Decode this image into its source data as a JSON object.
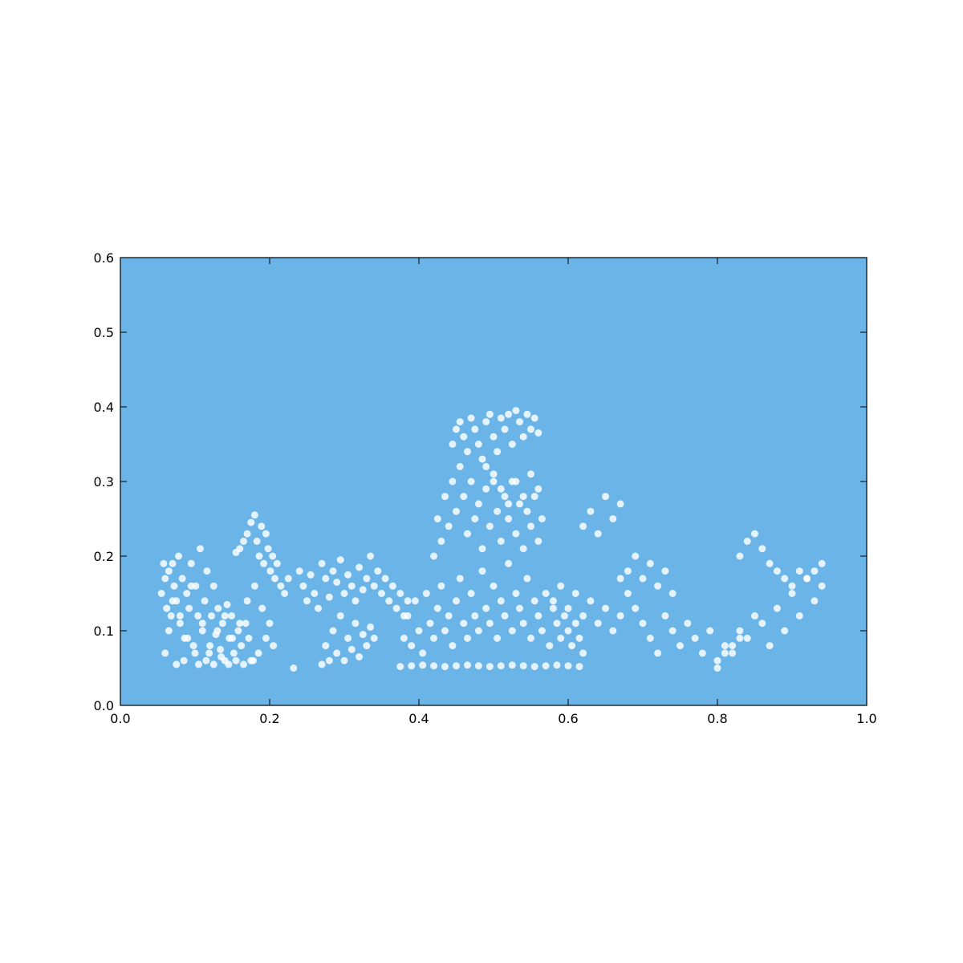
{
  "chart_data": {
    "type": "scatter",
    "title": "",
    "xlabel": "",
    "ylabel": "",
    "xlim": [
      0.0,
      1.0
    ],
    "ylim": [
      0.0,
      0.6
    ],
    "grid": false,
    "background_color": "#6ab4e8",
    "point_color": "#ffffff",
    "x_ticks": [
      "0.0",
      "0.2",
      "0.4",
      "0.6",
      "0.8",
      "1.0"
    ],
    "y_ticks": [
      "0.0",
      "0.1",
      "0.2",
      "0.3",
      "0.4",
      "0.5",
      "0.6"
    ],
    "series": [
      {
        "x": [
          0.055,
          0.058,
          0.06,
          0.062,
          0.065,
          0.068,
          0.07,
          0.072,
          0.075,
          0.078,
          0.08,
          0.083,
          0.086,
          0.089,
          0.092,
          0.095,
          0.098,
          0.101,
          0.104,
          0.107,
          0.11,
          0.113,
          0.116,
          0.119,
          0.122,
          0.125,
          0.128,
          0.131,
          0.134,
          0.137,
          0.14,
          0.143,
          0.146,
          0.149,
          0.152,
          0.155,
          0.158,
          0.16,
          0.162,
          0.165,
          0.168,
          0.17,
          0.172,
          0.175,
          0.178,
          0.18,
          0.183,
          0.186,
          0.189,
          0.192,
          0.195,
          0.198,
          0.201,
          0.204,
          0.207,
          0.21,
          0.215,
          0.22,
          0.225,
          0.232,
          0.06,
          0.065,
          0.07,
          0.075,
          0.08,
          0.085,
          0.09,
          0.095,
          0.1,
          0.105,
          0.11,
          0.115,
          0.12,
          0.125,
          0.13,
          0.135,
          0.14,
          0.145,
          0.15,
          0.155,
          0.16,
          0.165,
          0.17,
          0.175,
          0.18,
          0.185,
          0.19,
          0.195,
          0.2,
          0.205,
          0.24,
          0.245,
          0.25,
          0.255,
          0.26,
          0.265,
          0.27,
          0.275,
          0.28,
          0.285,
          0.29,
          0.295,
          0.3,
          0.305,
          0.31,
          0.315,
          0.32,
          0.325,
          0.33,
          0.335,
          0.34,
          0.345,
          0.35,
          0.355,
          0.36,
          0.365,
          0.37,
          0.375,
          0.38,
          0.385,
          0.27,
          0.275,
          0.28,
          0.285,
          0.29,
          0.295,
          0.3,
          0.305,
          0.31,
          0.315,
          0.32,
          0.325,
          0.33,
          0.335,
          0.34,
          0.38,
          0.385,
          0.39,
          0.395,
          0.4,
          0.405,
          0.41,
          0.415,
          0.42,
          0.425,
          0.43,
          0.435,
          0.44,
          0.445,
          0.45,
          0.455,
          0.46,
          0.465,
          0.47,
          0.475,
          0.48,
          0.485,
          0.49,
          0.495,
          0.5,
          0.505,
          0.51,
          0.515,
          0.52,
          0.525,
          0.53,
          0.535,
          0.54,
          0.545,
          0.55,
          0.555,
          0.56,
          0.565,
          0.57,
          0.575,
          0.58,
          0.585,
          0.59,
          0.595,
          0.6,
          0.605,
          0.61,
          0.615,
          0.62,
          0.375,
          0.39,
          0.405,
          0.42,
          0.435,
          0.45,
          0.465,
          0.48,
          0.495,
          0.51,
          0.525,
          0.54,
          0.555,
          0.57,
          0.585,
          0.6,
          0.615,
          0.42,
          0.425,
          0.43,
          0.435,
          0.44,
          0.445,
          0.45,
          0.455,
          0.46,
          0.465,
          0.47,
          0.475,
          0.48,
          0.485,
          0.49,
          0.495,
          0.5,
          0.505,
          0.51,
          0.515,
          0.52,
          0.525,
          0.53,
          0.535,
          0.54,
          0.545,
          0.55,
          0.555,
          0.56,
          0.565,
          0.445,
          0.45,
          0.455,
          0.46,
          0.465,
          0.47,
          0.475,
          0.48,
          0.485,
          0.49,
          0.495,
          0.5,
          0.505,
          0.51,
          0.515,
          0.52,
          0.525,
          0.53,
          0.535,
          0.54,
          0.545,
          0.55,
          0.555,
          0.56,
          0.49,
          0.5,
          0.51,
          0.52,
          0.53,
          0.54,
          0.55,
          0.56,
          0.58,
          0.59,
          0.6,
          0.61,
          0.62,
          0.63,
          0.64,
          0.65,
          0.66,
          0.67,
          0.62,
          0.63,
          0.64,
          0.65,
          0.66,
          0.67,
          0.68,
          0.69,
          0.7,
          0.71,
          0.72,
          0.73,
          0.74,
          0.67,
          0.68,
          0.69,
          0.7,
          0.71,
          0.72,
          0.73,
          0.74,
          0.75,
          0.76,
          0.77,
          0.78,
          0.79,
          0.8,
          0.81,
          0.82,
          0.83,
          0.8,
          0.81,
          0.82,
          0.83,
          0.84,
          0.85,
          0.86,
          0.87,
          0.88,
          0.89,
          0.9,
          0.91,
          0.92,
          0.93,
          0.94,
          0.83,
          0.84,
          0.85,
          0.86,
          0.87,
          0.88,
          0.89,
          0.9,
          0.91,
          0.92,
          0.93,
          0.94
        ],
        "y": [
          0.15,
          0.19,
          0.17,
          0.13,
          0.18,
          0.12,
          0.19,
          0.16,
          0.14,
          0.2,
          0.11,
          0.17,
          0.09,
          0.15,
          0.13,
          0.19,
          0.08,
          0.16,
          0.12,
          0.21,
          0.1,
          0.14,
          0.18,
          0.07,
          0.12,
          0.16,
          0.095,
          0.13,
          0.075,
          0.11,
          0.06,
          0.135,
          0.09,
          0.12,
          0.07,
          0.205,
          0.1,
          0.21,
          0.08,
          0.22,
          0.11,
          0.23,
          0.09,
          0.245,
          0.06,
          0.255,
          0.22,
          0.2,
          0.24,
          0.19,
          0.23,
          0.21,
          0.18,
          0.2,
          0.17,
          0.19,
          0.16,
          0.15,
          0.17,
          0.05,
          0.07,
          0.1,
          0.14,
          0.055,
          0.12,
          0.06,
          0.09,
          0.16,
          0.07,
          0.055,
          0.11,
          0.06,
          0.08,
          0.055,
          0.1,
          0.065,
          0.12,
          0.055,
          0.09,
          0.06,
          0.11,
          0.055,
          0.14,
          0.06,
          0.16,
          0.07,
          0.13,
          0.09,
          0.11,
          0.08,
          0.18,
          0.16,
          0.14,
          0.175,
          0.15,
          0.13,
          0.19,
          0.17,
          0.145,
          0.18,
          0.165,
          0.195,
          0.15,
          0.175,
          0.16,
          0.14,
          0.185,
          0.155,
          0.17,
          0.2,
          0.16,
          0.18,
          0.15,
          0.17,
          0.14,
          0.16,
          0.13,
          0.15,
          0.12,
          0.14,
          0.055,
          0.08,
          0.06,
          0.1,
          0.07,
          0.12,
          0.06,
          0.09,
          0.075,
          0.11,
          0.065,
          0.095,
          0.08,
          0.105,
          0.09,
          0.09,
          0.12,
          0.08,
          0.14,
          0.1,
          0.07,
          0.15,
          0.11,
          0.09,
          0.13,
          0.16,
          0.1,
          0.12,
          0.08,
          0.14,
          0.17,
          0.11,
          0.09,
          0.15,
          0.12,
          0.1,
          0.18,
          0.13,
          0.11,
          0.16,
          0.09,
          0.14,
          0.12,
          0.19,
          0.1,
          0.15,
          0.13,
          0.11,
          0.17,
          0.09,
          0.14,
          0.12,
          0.1,
          0.15,
          0.08,
          0.13,
          0.11,
          0.09,
          0.12,
          0.1,
          0.08,
          0.11,
          0.09,
          0.07,
          0.052,
          0.053,
          0.054,
          0.053,
          0.052,
          0.053,
          0.054,
          0.053,
          0.052,
          0.053,
          0.054,
          0.053,
          0.052,
          0.053,
          0.054,
          0.053,
          0.052,
          0.2,
          0.25,
          0.22,
          0.28,
          0.24,
          0.3,
          0.26,
          0.32,
          0.28,
          0.23,
          0.3,
          0.25,
          0.27,
          0.21,
          0.29,
          0.24,
          0.31,
          0.26,
          0.22,
          0.28,
          0.25,
          0.3,
          0.23,
          0.27,
          0.21,
          0.26,
          0.24,
          0.28,
          0.22,
          0.25,
          0.35,
          0.37,
          0.38,
          0.36,
          0.34,
          0.385,
          0.37,
          0.35,
          0.33,
          0.38,
          0.39,
          0.36,
          0.34,
          0.385,
          0.37,
          0.39,
          0.35,
          0.395,
          0.38,
          0.36,
          0.39,
          0.37,
          0.385,
          0.365,
          0.32,
          0.3,
          0.29,
          0.27,
          0.3,
          0.28,
          0.31,
          0.29,
          0.14,
          0.16,
          0.13,
          0.15,
          0.12,
          0.14,
          0.11,
          0.13,
          0.1,
          0.12,
          0.24,
          0.26,
          0.23,
          0.28,
          0.25,
          0.27,
          0.18,
          0.2,
          0.17,
          0.19,
          0.16,
          0.18,
          0.15,
          0.17,
          0.15,
          0.13,
          0.11,
          0.09,
          0.07,
          0.12,
          0.1,
          0.08,
          0.11,
          0.09,
          0.07,
          0.1,
          0.06,
          0.08,
          0.07,
          0.09,
          0.05,
          0.07,
          0.08,
          0.1,
          0.09,
          0.12,
          0.11,
          0.08,
          0.13,
          0.1,
          0.15,
          0.12,
          0.17,
          0.14,
          0.16,
          0.2,
          0.22,
          0.23,
          0.21,
          0.19,
          0.18,
          0.17,
          0.16,
          0.18,
          0.17,
          0.18,
          0.19
        ]
      }
    ]
  }
}
